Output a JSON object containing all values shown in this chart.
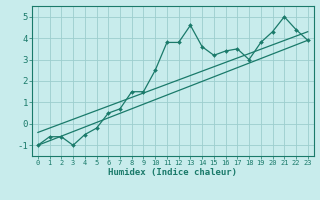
{
  "xlabel": "Humidex (Indice chaleur)",
  "bg_color": "#c8ecec",
  "grid_color": "#9ccece",
  "line_color": "#1a7a6a",
  "xlim": [
    -0.5,
    23.5
  ],
  "ylim": [
    -1.5,
    5.5
  ],
  "xticks": [
    0,
    1,
    2,
    3,
    4,
    5,
    6,
    7,
    8,
    9,
    10,
    11,
    12,
    13,
    14,
    15,
    16,
    17,
    18,
    19,
    20,
    21,
    22,
    23
  ],
  "yticks": [
    -1,
    0,
    1,
    2,
    3,
    4,
    5
  ],
  "main_x": [
    0,
    1,
    2,
    3,
    4,
    5,
    6,
    7,
    8,
    9,
    10,
    11,
    12,
    13,
    14,
    15,
    16,
    17,
    18,
    19,
    20,
    21,
    22,
    23
  ],
  "main_y": [
    -1.0,
    -0.6,
    -0.6,
    -1.0,
    -0.5,
    -0.2,
    0.5,
    0.7,
    1.5,
    1.5,
    2.5,
    3.8,
    3.8,
    4.6,
    3.6,
    3.2,
    3.4,
    3.5,
    3.0,
    3.8,
    4.3,
    5.0,
    4.4,
    3.9
  ],
  "line1_x": [
    0,
    23
  ],
  "line1_y": [
    -1.0,
    3.9
  ],
  "line2_x": [
    0,
    23
  ],
  "line2_y": [
    -0.4,
    4.3
  ]
}
